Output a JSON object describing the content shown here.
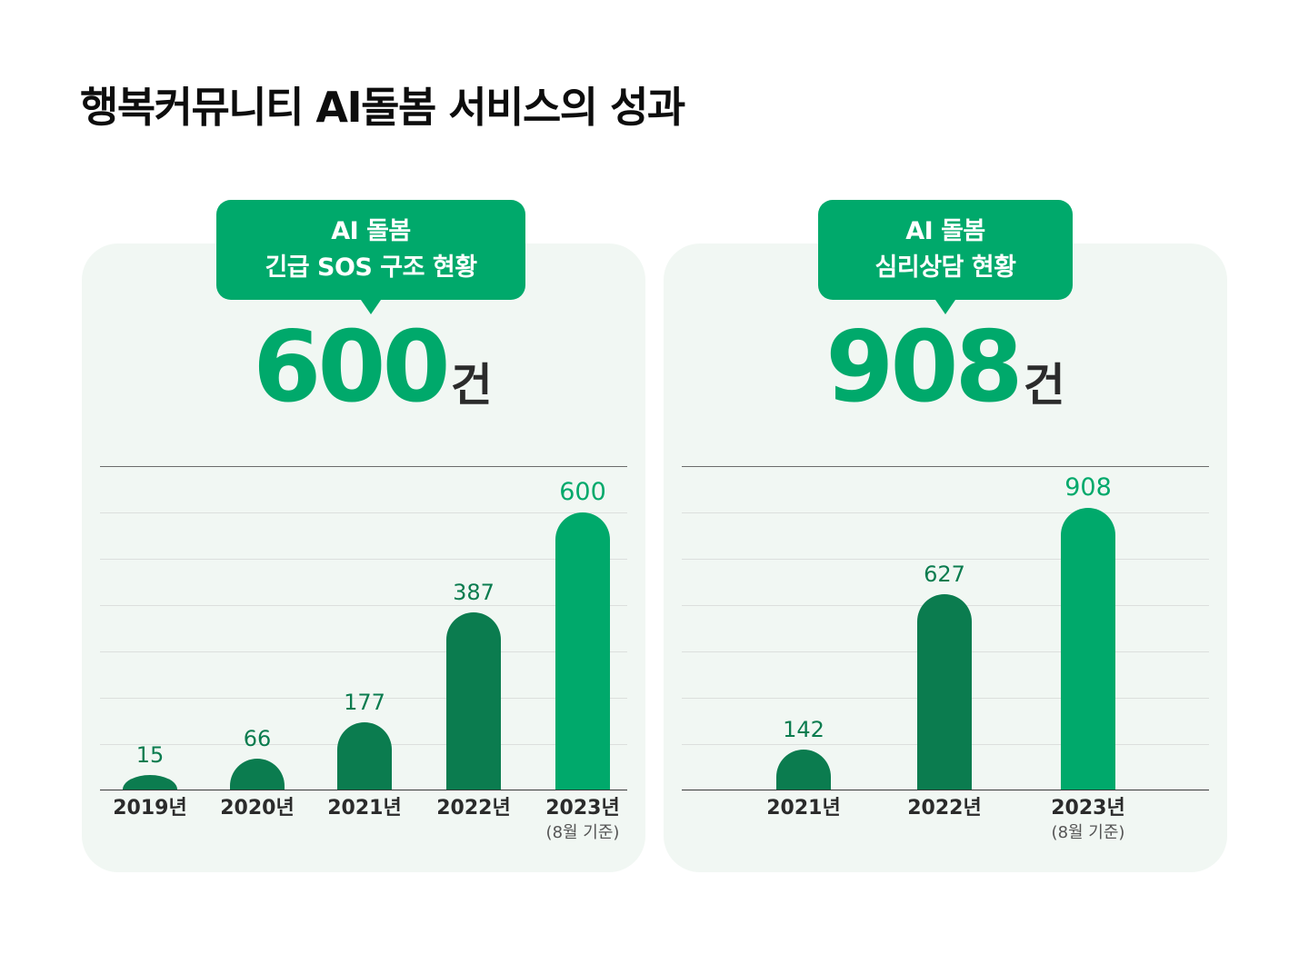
{
  "title": "행복커뮤니티 AI돌봄 서비스의 성과",
  "colors": {
    "accent": "#00a96b",
    "dark_green": "#0b7c4f",
    "card_bg": "#f1f7f3",
    "text": "#2b2b2b"
  },
  "panels": [
    {
      "bubble_line1": "AI 돌봄",
      "bubble_line2": "긴급 SOS 구조 현황",
      "total_value": "600",
      "total_unit": "건",
      "bars": [
        {
          "label": "2019년",
          "value": "15",
          "sub": ""
        },
        {
          "label": "2020년",
          "value": "66",
          "sub": ""
        },
        {
          "label": "2021년",
          "value": "177",
          "sub": ""
        },
        {
          "label": "2022년",
          "value": "387",
          "sub": ""
        },
        {
          "label": "2023년",
          "value": "600",
          "sub": "(8월 기준)"
        }
      ]
    },
    {
      "bubble_line1": "AI 돌봄",
      "bubble_line2": "심리상담 현황",
      "total_value": "908",
      "total_unit": "건",
      "bars": [
        {
          "label": "2021년",
          "value": "142",
          "sub": ""
        },
        {
          "label": "2022년",
          "value": "627",
          "sub": ""
        },
        {
          "label": "2023년",
          "value": "908",
          "sub": "(8월 기준)"
        }
      ]
    }
  ],
  "chart_data": [
    {
      "type": "bar",
      "title": "AI 돌봄 긴급 SOS 구조 현황",
      "headline_total": "600건",
      "categories": [
        "2019년",
        "2020년",
        "2021년",
        "2022년",
        "2023년 (8월 기준)"
      ],
      "values": [
        15,
        66,
        177,
        387,
        600
      ],
      "xlabel": "",
      "ylabel": "건",
      "grid": true,
      "highlight": "2023년 (8월 기준)"
    },
    {
      "type": "bar",
      "title": "AI 돌봄 심리상담 현황",
      "headline_total": "908건",
      "categories": [
        "2021년",
        "2022년",
        "2023년 (8월 기준)"
      ],
      "values": [
        142,
        627,
        908
      ],
      "xlabel": "",
      "ylabel": "건",
      "grid": true,
      "highlight": "2023년 (8월 기준)"
    }
  ]
}
